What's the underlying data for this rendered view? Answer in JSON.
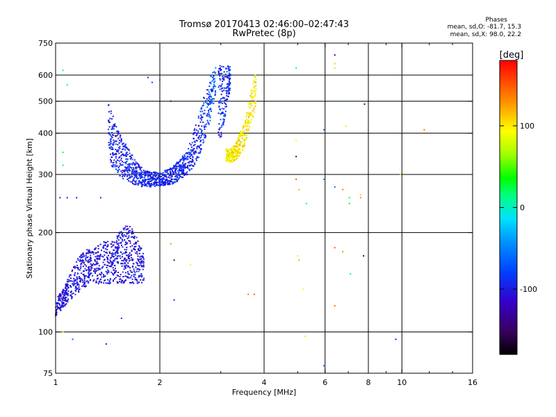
{
  "title": "Tromsø 20170413 02:46:00–02:47:43",
  "subtitle": "RwPretec (8p)",
  "phases": {
    "header": "Phases",
    "o_line": "mean, sd,O: -81.7, 15.3",
    "x_line": "mean, sd,X: 98.0, 22.2"
  },
  "colorbar": {
    "label": "[deg]",
    "ticks": [
      {
        "value": 100,
        "label": "100"
      },
      {
        "value": 0,
        "label": "0"
      },
      {
        "value": -100,
        "label": "-100"
      }
    ],
    "range": [
      -180,
      180
    ]
  },
  "chart_data": {
    "type": "scatter",
    "xlabel": "Frequency [MHz]",
    "ylabel": "Stationary phase Virtual Height [km]",
    "xscale": "log",
    "yscale": "log",
    "xlim": [
      1,
      16
    ],
    "ylim": [
      75,
      750
    ],
    "xticks": [
      {
        "value": 1,
        "label": "1"
      },
      {
        "value": 2,
        "label": "2"
      },
      {
        "value": 4,
        "label": "4"
      },
      {
        "value": 6,
        "label": "6"
      },
      {
        "value": 8,
        "label": "8"
      },
      {
        "value": 10,
        "label": "10"
      },
      {
        "value": 16,
        "label": "16"
      }
    ],
    "xgrid": [
      1,
      2,
      4,
      6,
      8,
      10
    ],
    "xminor_ticks": [
      3,
      5,
      7,
      9,
      12,
      14
    ],
    "yticks": [
      {
        "value": 75,
        "label": "75"
      },
      {
        "value": 100,
        "label": "100"
      },
      {
        "value": 200,
        "label": "200"
      },
      {
        "value": 300,
        "label": "300"
      },
      {
        "value": 400,
        "label": "400"
      },
      {
        "value": 500,
        "label": "500"
      },
      {
        "value": 600,
        "label": "600"
      },
      {
        "value": 750,
        "label": "750"
      }
    ],
    "ygrid": [
      100,
      200,
      300,
      400,
      500,
      600
    ],
    "grid": true,
    "color_encoding": "phase [deg]",
    "series": [
      {
        "trace": "o_low",
        "x": [
          1.0,
          1.05,
          1.1,
          1.15,
          1.2,
          1.25,
          1.3,
          1.35,
          1.4,
          1.45,
          1.5,
          1.55,
          1.6,
          1.65,
          1.7,
          1.75,
          1.8
        ],
        "y_min": [
          112,
          118,
          125,
          130,
          135,
          140,
          140,
          140,
          140,
          140,
          140,
          140,
          140,
          140,
          140,
          140,
          140
        ],
        "y_max": [
          125,
          135,
          150,
          165,
          175,
          180,
          180,
          185,
          190,
          190,
          195,
          205,
          210,
          210,
          200,
          185,
          175
        ],
        "phase_mean": -105
      },
      {
        "trace": "o_main",
        "x": [
          1.42,
          1.45,
          1.5,
          1.55,
          1.6,
          1.65,
          1.7,
          1.75,
          1.8,
          1.9,
          2.0,
          2.1,
          2.2,
          2.3,
          2.4,
          2.5,
          2.6,
          2.7,
          2.8,
          2.9
        ],
        "y_min": [
          340,
          320,
          300,
          290,
          285,
          280,
          278,
          276,
          275,
          275,
          276,
          278,
          282,
          290,
          300,
          315,
          340,
          380,
          440,
          520
        ],
        "y_max": [
          500,
          470,
          420,
          390,
          370,
          350,
          330,
          320,
          310,
          305,
          305,
          310,
          320,
          335,
          360,
          400,
          460,
          530,
          600,
          640
        ],
        "phase_mean": -95
      },
      {
        "trace": "o_cusp",
        "x": [
          2.95,
          3.0,
          3.05,
          3.1,
          3.15,
          3.2
        ],
        "y_min": [
          350,
          380,
          420,
          460,
          500,
          560
        ],
        "y_max": [
          640,
          645,
          645,
          640,
          640,
          640
        ],
        "phase_mean": -90
      },
      {
        "trace": "x_main",
        "x": [
          3.1,
          3.2,
          3.3,
          3.4,
          3.5,
          3.6,
          3.7,
          3.8
        ],
        "y_min": [
          330,
          325,
          330,
          340,
          360,
          400,
          440,
          480
        ],
        "y_max": [
          360,
          360,
          370,
          400,
          430,
          480,
          560,
          620
        ],
        "phase_mean": 98
      }
    ],
    "scatter_points": [
      {
        "x": 1.05,
        "y": 620,
        "phase": 20
      },
      {
        "x": 1.08,
        "y": 560,
        "phase": 0
      },
      {
        "x": 1.05,
        "y": 350,
        "phase": 30
      },
      {
        "x": 1.05,
        "y": 320,
        "phase": 20
      },
      {
        "x": 1.03,
        "y": 255,
        "phase": -100
      },
      {
        "x": 1.08,
        "y": 255,
        "phase": -110
      },
      {
        "x": 1.15,
        "y": 255,
        "phase": -100
      },
      {
        "x": 1.35,
        "y": 255,
        "phase": -90
      },
      {
        "x": 1.05,
        "y": 100,
        "phase": 100
      },
      {
        "x": 1.12,
        "y": 95,
        "phase": -60
      },
      {
        "x": 1.4,
        "y": 92,
        "phase": -110
      },
      {
        "x": 1.55,
        "y": 110,
        "phase": -90
      },
      {
        "x": 1.85,
        "y": 590,
        "phase": -100
      },
      {
        "x": 1.9,
        "y": 570,
        "phase": -80
      },
      {
        "x": 2.0,
        "y": 580,
        "phase": -60
      },
      {
        "x": 2.15,
        "y": 500,
        "phase": -150
      },
      {
        "x": 2.15,
        "y": 185,
        "phase": 130
      },
      {
        "x": 2.2,
        "y": 165,
        "phase": -150
      },
      {
        "x": 2.2,
        "y": 125,
        "phase": -110
      },
      {
        "x": 2.45,
        "y": 160,
        "phase": 100
      },
      {
        "x": 3.6,
        "y": 130,
        "phase": 140
      },
      {
        "x": 3.75,
        "y": 130,
        "phase": 150
      },
      {
        "x": 4.95,
        "y": 630,
        "phase": 10
      },
      {
        "x": 4.95,
        "y": 380,
        "phase": 90
      },
      {
        "x": 4.95,
        "y": 340,
        "phase": -140
      },
      {
        "x": 4.95,
        "y": 290,
        "phase": 150
      },
      {
        "x": 5.05,
        "y": 270,
        "phase": 120
      },
      {
        "x": 5.3,
        "y": 245,
        "phase": 10
      },
      {
        "x": 5.0,
        "y": 170,
        "phase": 80
      },
      {
        "x": 5.05,
        "y": 165,
        "phase": 120
      },
      {
        "x": 5.2,
        "y": 135,
        "phase": 90
      },
      {
        "x": 5.25,
        "y": 97,
        "phase": 100
      },
      {
        "x": 5.95,
        "y": 410,
        "phase": -60
      },
      {
        "x": 5.95,
        "y": 290,
        "phase": -40
      },
      {
        "x": 5.95,
        "y": 79,
        "phase": -60
      },
      {
        "x": 6.4,
        "y": 690,
        "phase": -150
      },
      {
        "x": 6.4,
        "y": 650,
        "phase": 110
      },
      {
        "x": 6.4,
        "y": 630,
        "phase": 70
      },
      {
        "x": 6.4,
        "y": 275,
        "phase": -60
      },
      {
        "x": 6.4,
        "y": 180,
        "phase": 150
      },
      {
        "x": 6.4,
        "y": 120,
        "phase": 140
      },
      {
        "x": 6.75,
        "y": 500,
        "phase": -40
      },
      {
        "x": 6.75,
        "y": 270,
        "phase": 140
      },
      {
        "x": 6.75,
        "y": 175,
        "phase": 130
      },
      {
        "x": 6.9,
        "y": 420,
        "phase": 80
      },
      {
        "x": 7.05,
        "y": 255,
        "phase": 20
      },
      {
        "x": 7.05,
        "y": 245,
        "phase": 30
      },
      {
        "x": 7.1,
        "y": 150,
        "phase": 20
      },
      {
        "x": 7.6,
        "y": 260,
        "phase": 110
      },
      {
        "x": 7.6,
        "y": 255,
        "phase": 130
      },
      {
        "x": 7.75,
        "y": 170,
        "phase": -160
      },
      {
        "x": 7.8,
        "y": 490,
        "phase": -150
      },
      {
        "x": 9.6,
        "y": 95,
        "phase": -100
      },
      {
        "x": 9.9,
        "y": 300,
        "phase": 110
      },
      {
        "x": 11.6,
        "y": 410,
        "phase": 140
      }
    ]
  }
}
